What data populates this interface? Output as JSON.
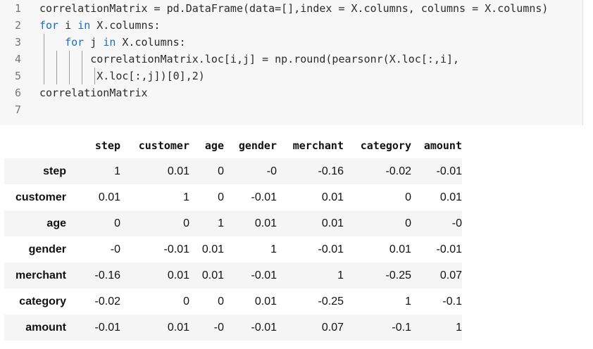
{
  "code_cell": {
    "lines": [
      {
        "number": "1",
        "parts": [
          {
            "text": "correlationMatrix = pd.DataFrame(data=[],index = X.columns, columns = X.columns)",
            "kind": "plain"
          }
        ]
      },
      {
        "number": "2",
        "parts": [
          {
            "text": "for",
            "kind": "keyword"
          },
          {
            "text": " i ",
            "kind": "plain"
          },
          {
            "text": "in",
            "kind": "keyword"
          },
          {
            "text": " X.columns:",
            "kind": "plain"
          }
        ]
      },
      {
        "number": "3",
        "parts": [
          {
            "text": "    ",
            "kind": "plain"
          },
          {
            "text": "for",
            "kind": "keyword"
          },
          {
            "text": " j ",
            "kind": "plain"
          },
          {
            "text": "in",
            "kind": "keyword"
          },
          {
            "text": " X.columns:",
            "kind": "plain"
          }
        ]
      },
      {
        "number": "4",
        "parts": [
          {
            "text": "        correlationMatrix.loc[i,j] = np.round(pearsonr(X.loc[:,i],",
            "kind": "plain"
          }
        ]
      },
      {
        "number": "5",
        "parts": [
          {
            "text": "         X.loc[:,j])[0],2)",
            "kind": "plain"
          }
        ]
      },
      {
        "number": "6",
        "parts": [
          {
            "text": "correlationMatrix",
            "kind": "plain"
          }
        ]
      },
      {
        "number": "7",
        "parts": [
          {
            "text": "",
            "kind": "plain"
          }
        ]
      }
    ]
  },
  "output_table": {
    "columns": [
      "step",
      "customer",
      "age",
      "gender",
      "merchant",
      "category",
      "amount"
    ],
    "rows": [
      {
        "index": "step",
        "values": [
          "1",
          "0.01",
          "0",
          "-0",
          "-0.16",
          "-0.02",
          "-0.01"
        ]
      },
      {
        "index": "customer",
        "values": [
          "0.01",
          "1",
          "0",
          "-0.01",
          "0.01",
          "0",
          "0.01"
        ]
      },
      {
        "index": "age",
        "values": [
          "0",
          "0",
          "1",
          "0.01",
          "0.01",
          "0",
          "-0"
        ]
      },
      {
        "index": "gender",
        "values": [
          "-0",
          "-0.01",
          "0.01",
          "1",
          "-0.01",
          "0.01",
          "-0.01"
        ]
      },
      {
        "index": "merchant",
        "values": [
          "-0.16",
          "0.01",
          "0.01",
          "-0.01",
          "1",
          "-0.25",
          "0.07"
        ]
      },
      {
        "index": "category",
        "values": [
          "-0.02",
          "0",
          "0",
          "0.01",
          "-0.25",
          "1",
          "-0.1"
        ]
      },
      {
        "index": "amount",
        "values": [
          "-0.01",
          "0.01",
          "-0",
          "-0.01",
          "0.07",
          "-0.1",
          "1"
        ]
      }
    ]
  },
  "colors": {
    "keyword": "#1a6fbd",
    "code_background": "#f7f7f7",
    "striped_row": "#f5f5f5"
  }
}
